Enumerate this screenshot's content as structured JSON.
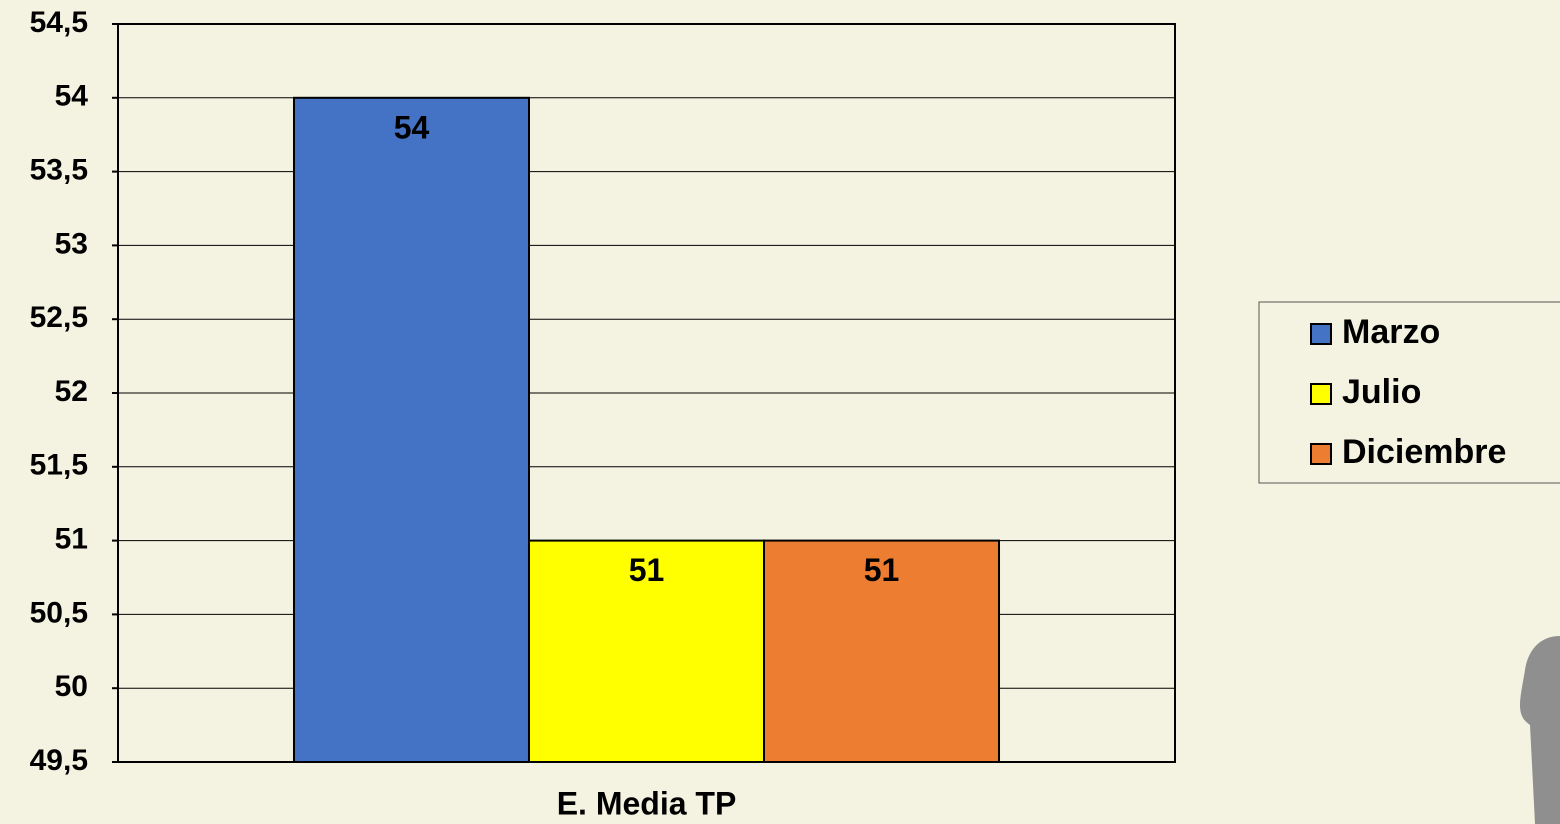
{
  "chart_data": {
    "type": "bar",
    "categories": [
      "E. Media TP"
    ],
    "series": [
      {
        "name": "Marzo",
        "color": "#4472c4",
        "values": [
          54
        ]
      },
      {
        "name": "Julio",
        "color": "#ffff00",
        "values": [
          51
        ]
      },
      {
        "name": "Diciembre",
        "color": "#ed7d31",
        "values": [
          51
        ]
      }
    ],
    "ylim": [
      49.5,
      54.5
    ],
    "yticks": [
      {
        "value": 49.5,
        "label": "49,5"
      },
      50,
      {
        "value": 50.5,
        "label": "50,5"
      },
      51,
      {
        "value": 51.5,
        "label": "51,5"
      },
      52,
      {
        "value": 52.5,
        "label": "52,5"
      },
      53,
      {
        "value": 53.5,
        "label": "53,5"
      },
      54,
      {
        "value": 54.5,
        "label": "54,5"
      }
    ],
    "grid": true,
    "legend": "right"
  }
}
